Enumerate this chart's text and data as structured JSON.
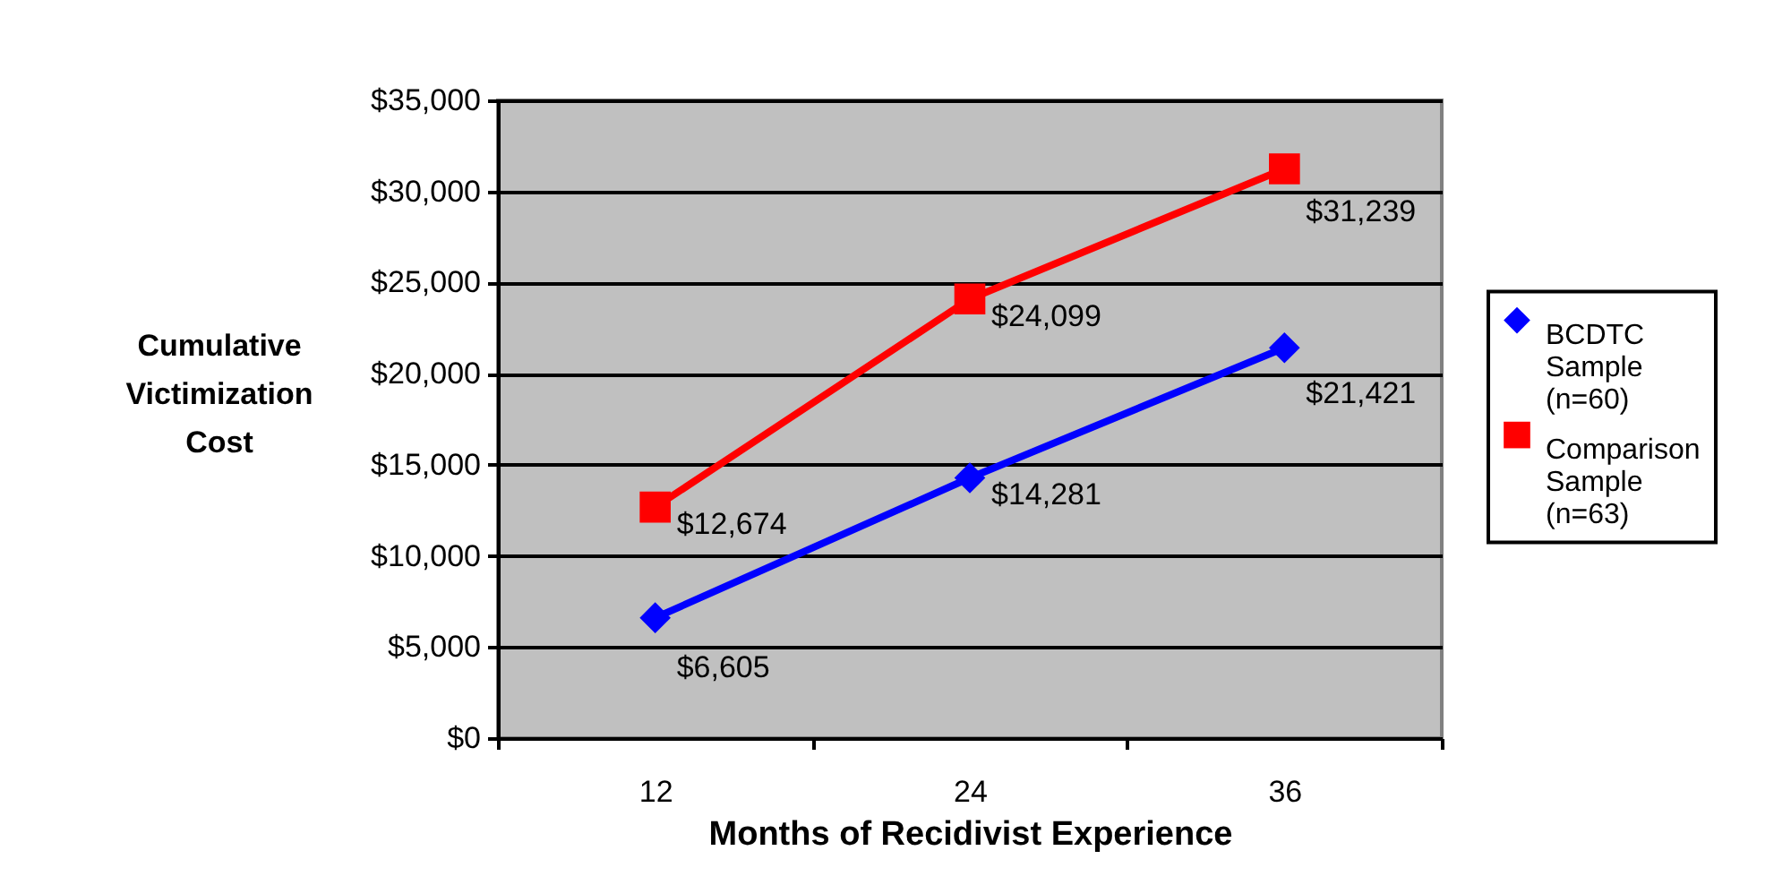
{
  "chart_data": {
    "type": "line",
    "xlabel": "Months of Recidivist Experience",
    "ylabel": "Cumulative Victimization Cost",
    "categories": [
      "12",
      "24",
      "36"
    ],
    "series": [
      {
        "name": "BCDTC Sample (n=60)",
        "color": "#0000ff",
        "marker": "diamond",
        "values": [
          6605,
          14281,
          21421
        ],
        "value_labels": [
          "$6,605",
          "$14,281",
          "$21,421"
        ]
      },
      {
        "name": "Comparison Sample (n=63)",
        "color": "#ff0000",
        "marker": "square",
        "values": [
          12674,
          24099,
          31239
        ],
        "value_labels": [
          "$12,674",
          "$24,099",
          "$31,239"
        ]
      }
    ],
    "ylim": [
      0,
      35000
    ],
    "yticks": [
      {
        "value": 0,
        "label": "$0"
      },
      {
        "value": 5000,
        "label": "$5,000"
      },
      {
        "value": 10000,
        "label": "$10,000"
      },
      {
        "value": 15000,
        "label": "$15,000"
      },
      {
        "value": 20000,
        "label": "$20,000"
      },
      {
        "value": 25000,
        "label": "$25,000"
      },
      {
        "value": 30000,
        "label": "$30,000"
      },
      {
        "value": 35000,
        "label": "$35,000"
      }
    ],
    "grid": "y",
    "legend": "right",
    "line_style": "solid"
  }
}
